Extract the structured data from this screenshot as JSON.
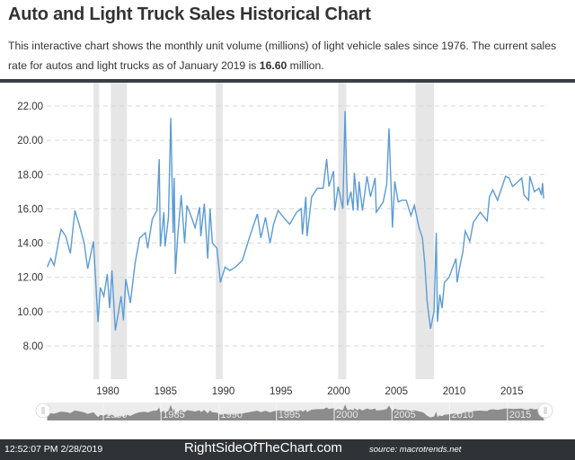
{
  "header": {
    "title": "Auto and Light Truck Sales Historical Chart",
    "desc_before": "This interactive chart shows the monthly unit volume (millions) of light vehicle sales since 1976. The current sales rate for autos and light trucks as of January 2019 is ",
    "desc_value": "16.60",
    "desc_after": " million."
  },
  "footer": {
    "clock": "12:52:07 PM 2/28/2019",
    "brand": "RightSideOfTheChart.com",
    "source": "source: macrotrends.net"
  },
  "chart_data": {
    "type": "line",
    "title": "",
    "xlabel": "",
    "ylabel": "",
    "xlim": [
      1976,
      2019.1
    ],
    "ylim": [
      6.5,
      22.5
    ],
    "yticks": [
      "8.00",
      "10.00",
      "12.00",
      "14.00",
      "16.00",
      "18.00",
      "20.00",
      "22.00"
    ],
    "xticks": [
      "1980",
      "1985",
      "1990",
      "1995",
      "2000",
      "2005",
      "2010",
      "2015"
    ],
    "grid": "horizontal dashed",
    "legend": "none",
    "colors": {
      "line": "#5b9bd5",
      "recession": "#e6e6e6",
      "navigator": "#8c8c8c"
    },
    "recessions": [
      [
        1980.0,
        1980.5
      ],
      [
        1981.5,
        1982.9
      ],
      [
        1990.6,
        1991.2
      ],
      [
        2001.2,
        2001.9
      ],
      [
        2007.9,
        2009.5
      ]
    ],
    "series": [
      {
        "points": [
          [
            1976.0,
            12.6
          ],
          [
            1976.3,
            13.1
          ],
          [
            1976.6,
            12.7
          ],
          [
            1977.0,
            14.2
          ],
          [
            1977.2,
            14.8
          ],
          [
            1977.6,
            14.4
          ],
          [
            1978.0,
            13.4
          ],
          [
            1978.4,
            15.9
          ],
          [
            1978.8,
            15.0
          ],
          [
            1979.2,
            14.0
          ],
          [
            1979.5,
            12.5
          ],
          [
            1980.0,
            14.1
          ],
          [
            1980.4,
            9.4
          ],
          [
            1980.6,
            11.4
          ],
          [
            1980.9,
            10.9
          ],
          [
            1981.2,
            12.2
          ],
          [
            1981.4,
            10.2
          ],
          [
            1981.6,
            12.4
          ],
          [
            1981.9,
            8.9
          ],
          [
            1982.4,
            10.9
          ],
          [
            1982.6,
            9.5
          ],
          [
            1982.8,
            11.9
          ],
          [
            1983.2,
            10.5
          ],
          [
            1983.6,
            12.8
          ],
          [
            1984.0,
            14.3
          ],
          [
            1984.5,
            14.6
          ],
          [
            1984.7,
            13.7
          ],
          [
            1985.1,
            15.4
          ],
          [
            1985.5,
            15.9
          ],
          [
            1985.7,
            18.9
          ],
          [
            1985.8,
            13.8
          ],
          [
            1986.1,
            15.8
          ],
          [
            1986.2,
            13.8
          ],
          [
            1986.5,
            15.5
          ],
          [
            1986.7,
            21.3
          ],
          [
            1986.9,
            14.6
          ],
          [
            1987.0,
            17.8
          ],
          [
            1987.1,
            12.2
          ],
          [
            1987.3,
            14.4
          ],
          [
            1987.6,
            16.8
          ],
          [
            1987.9,
            14.0
          ],
          [
            1988.1,
            16.2
          ],
          [
            1988.5,
            15.5
          ],
          [
            1988.8,
            14.9
          ],
          [
            1989.2,
            16.1
          ],
          [
            1989.3,
            14.4
          ],
          [
            1989.6,
            16.3
          ],
          [
            1989.9,
            13.1
          ],
          [
            1990.1,
            16.0
          ],
          [
            1990.3,
            14.0
          ],
          [
            1990.7,
            13.7
          ],
          [
            1991.0,
            11.7
          ],
          [
            1991.4,
            12.6
          ],
          [
            1991.8,
            12.4
          ],
          [
            1992.3,
            12.6
          ],
          [
            1992.9,
            13.0
          ],
          [
            1993.5,
            14.3
          ],
          [
            1993.9,
            15.1
          ],
          [
            1994.2,
            15.7
          ],
          [
            1994.5,
            14.3
          ],
          [
            1994.9,
            15.5
          ],
          [
            1995.3,
            14.0
          ],
          [
            1995.6,
            15.1
          ],
          [
            1996.0,
            15.9
          ],
          [
            1996.6,
            15.4
          ],
          [
            1997.0,
            15.1
          ],
          [
            1997.6,
            15.8
          ],
          [
            1998.0,
            16.0
          ],
          [
            1998.1,
            14.5
          ],
          [
            1998.4,
            16.7
          ],
          [
            1998.5,
            14.4
          ],
          [
            1998.9,
            16.7
          ],
          [
            1999.4,
            17.2
          ],
          [
            1999.9,
            17.2
          ],
          [
            2000.2,
            18.9
          ],
          [
            2000.4,
            17.3
          ],
          [
            2000.8,
            18.2
          ],
          [
            2000.9,
            15.9
          ],
          [
            2001.2,
            17.3
          ],
          [
            2001.6,
            16.0
          ],
          [
            2001.8,
            21.7
          ],
          [
            2002.0,
            16.2
          ],
          [
            2002.3,
            17.0
          ],
          [
            2002.5,
            15.9
          ],
          [
            2002.6,
            18.1
          ],
          [
            2002.9,
            15.9
          ],
          [
            2003.0,
            17.6
          ],
          [
            2003.3,
            15.9
          ],
          [
            2003.7,
            17.9
          ],
          [
            2004.0,
            16.7
          ],
          [
            2004.4,
            17.8
          ],
          [
            2004.5,
            15.8
          ],
          [
            2005.1,
            16.4
          ],
          [
            2005.4,
            17.4
          ],
          [
            2005.6,
            20.7
          ],
          [
            2005.9,
            14.9
          ],
          [
            2006.1,
            17.6
          ],
          [
            2006.4,
            16.4
          ],
          [
            2006.7,
            16.5
          ],
          [
            2007.1,
            16.5
          ],
          [
            2007.5,
            15.6
          ],
          [
            2007.8,
            16.2
          ],
          [
            2008.2,
            14.9
          ],
          [
            2008.5,
            14.3
          ],
          [
            2008.7,
            12.8
          ],
          [
            2008.9,
            10.6
          ],
          [
            2009.2,
            9.0
          ],
          [
            2009.5,
            10.0
          ],
          [
            2009.7,
            14.6
          ],
          [
            2009.8,
            9.4
          ],
          [
            2010.0,
            11.0
          ],
          [
            2010.2,
            10.2
          ],
          [
            2010.4,
            11.7
          ],
          [
            2010.8,
            12.0
          ],
          [
            2011.4,
            13.1
          ],
          [
            2011.5,
            11.7
          ],
          [
            2011.7,
            12.5
          ],
          [
            2012.0,
            13.5
          ],
          [
            2012.2,
            14.7
          ],
          [
            2012.6,
            14.1
          ],
          [
            2012.9,
            15.2
          ],
          [
            2013.2,
            15.5
          ],
          [
            2013.5,
            15.8
          ],
          [
            2014.1,
            15.3
          ],
          [
            2014.3,
            16.7
          ],
          [
            2014.6,
            17.1
          ],
          [
            2015.0,
            16.5
          ],
          [
            2015.5,
            17.5
          ],
          [
            2015.7,
            17.9
          ],
          [
            2016.0,
            17.8
          ],
          [
            2016.3,
            17.3
          ],
          [
            2016.8,
            17.6
          ],
          [
            2017.1,
            17.8
          ],
          [
            2017.3,
            16.8
          ],
          [
            2017.7,
            16.5
          ],
          [
            2017.8,
            17.9
          ],
          [
            2018.2,
            17.0
          ],
          [
            2018.6,
            17.2
          ],
          [
            2018.8,
            16.8
          ],
          [
            2018.9,
            17.5
          ],
          [
            2019.0,
            16.6
          ]
        ]
      }
    ]
  }
}
